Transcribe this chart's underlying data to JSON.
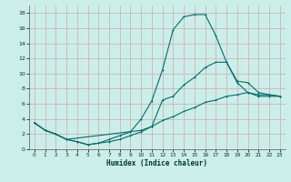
{
  "xlabel": "Humidex (Indice chaleur)",
  "bg_color": "#cceee8",
  "grid_color": "#c8aab4",
  "line_color": "#006e6e",
  "xlim": [
    -0.5,
    23.5
  ],
  "ylim": [
    0,
    19
  ],
  "xticks": [
    0,
    1,
    2,
    3,
    4,
    5,
    6,
    7,
    8,
    9,
    10,
    11,
    12,
    13,
    14,
    15,
    16,
    17,
    18,
    19,
    20,
    21,
    22,
    23
  ],
  "yticks": [
    0,
    2,
    4,
    6,
    8,
    10,
    12,
    14,
    16,
    18
  ],
  "line1_x": [
    0,
    1,
    2,
    3,
    4,
    5,
    6,
    7,
    8,
    9,
    10,
    11,
    12,
    13,
    14,
    15,
    16,
    17,
    18,
    19,
    20,
    21,
    22,
    23
  ],
  "line1_y": [
    3.5,
    2.5,
    2.0,
    1.3,
    1.0,
    0.6,
    0.8,
    1.3,
    1.8,
    2.3,
    4.0,
    6.4,
    10.5,
    15.8,
    17.5,
    17.8,
    17.8,
    15.0,
    11.5,
    8.8,
    7.5,
    7.2,
    7.2,
    7.0
  ],
  "line2_x": [
    0,
    1,
    2,
    3,
    10,
    11,
    12,
    13,
    14,
    15,
    16,
    17,
    18,
    19,
    20,
    21,
    22,
    23
  ],
  "line2_y": [
    3.5,
    2.5,
    2.0,
    1.3,
    2.5,
    3.0,
    6.5,
    7.0,
    8.5,
    9.5,
    10.8,
    11.5,
    11.5,
    9.0,
    8.8,
    7.5,
    7.2,
    7.0
  ],
  "line3_x": [
    0,
    1,
    2,
    3,
    4,
    5,
    6,
    7,
    8,
    9,
    10,
    11,
    12,
    13,
    14,
    15,
    16,
    17,
    18,
    19,
    20,
    21,
    22,
    23
  ],
  "line3_y": [
    3.5,
    2.5,
    2.0,
    1.3,
    1.0,
    0.6,
    0.8,
    1.0,
    1.3,
    1.8,
    2.3,
    3.0,
    3.8,
    4.3,
    5.0,
    5.5,
    6.2,
    6.5,
    7.0,
    7.2,
    7.5,
    7.0,
    7.0,
    7.0
  ]
}
